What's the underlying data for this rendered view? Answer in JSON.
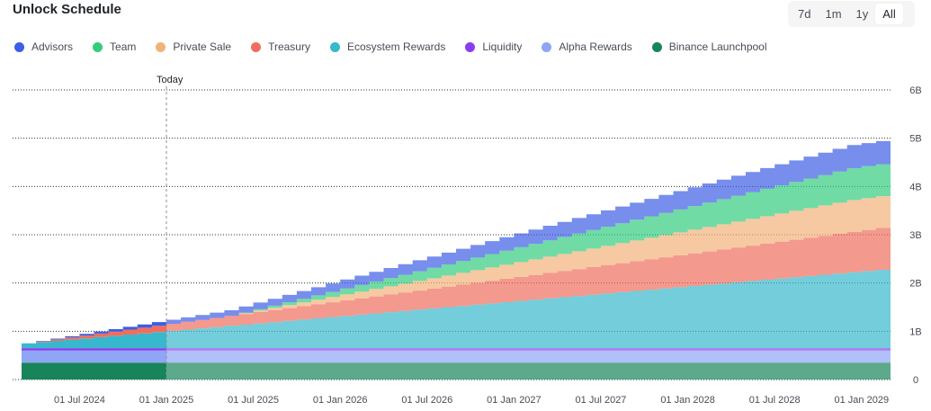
{
  "title": "Unlock Schedule",
  "ranges": {
    "d7": "7d",
    "m1": "1m",
    "y1": "1y",
    "all": "All"
  },
  "legend": [
    {
      "name": "Advisors",
      "color": "#3d5ee6"
    },
    {
      "name": "Team",
      "color": "#33cc7d"
    },
    {
      "name": "Private Sale",
      "color": "#f2b27b"
    },
    {
      "name": "Treasury",
      "color": "#f06e5c"
    },
    {
      "name": "Ecosystem Rewards",
      "color": "#37b8cc"
    },
    {
      "name": "Liquidity",
      "color": "#8a3df0"
    },
    {
      "name": "Alpha Rewards",
      "color": "#8fa5f5"
    },
    {
      "name": "Binance Launchpool",
      "color": "#17845a"
    }
  ],
  "today_label": "Today",
  "chart_data": {
    "type": "area",
    "stacked": true,
    "title": "Unlock Schedule",
    "x_range": [
      "2024-03",
      "2029-03"
    ],
    "ylim": [
      0,
      6
    ],
    "y_unit": "B",
    "y_ticks": [
      "0",
      "1B",
      "2B",
      "3B",
      "4B",
      "5B",
      "6B"
    ],
    "x_ticks": [
      "01 Jul 2024",
      "01 Jan 2025",
      "01 Jul 2025",
      "01 Jan 2026",
      "01 Jul 2026",
      "01 Jan 2027",
      "01 Jul 2027",
      "01 Jan 2028",
      "01 Jul 2028",
      "01 Jan 2029"
    ],
    "today_month": 10,
    "months": 61,
    "series": [
      {
        "name": "Binance Launchpool",
        "profile": "constant",
        "start": 0.35,
        "end": 0.35
      },
      {
        "name": "Alpha Rewards",
        "profile": "constant",
        "start": 0.25,
        "end": 0.25
      },
      {
        "name": "Liquidity",
        "profile": "constant",
        "start": 0.05,
        "end": 0.05
      },
      {
        "name": "Ecosystem Rewards",
        "profile": "linear",
        "start": 0.1,
        "end": 1.65
      },
      {
        "name": "Treasury",
        "profile": "linear",
        "start": 0.0,
        "end": 0.88
      },
      {
        "name": "Private Sale",
        "profile": "cliff",
        "start": 0.0,
        "end": 0.66,
        "vest_start": 14,
        "vest_end": 57
      },
      {
        "name": "Team",
        "profile": "cliff",
        "start": 0.0,
        "end": 0.66,
        "vest_start": 14,
        "vest_end": 57
      },
      {
        "name": "Advisors",
        "profile": "advisors",
        "start": 0.0,
        "end": 0.48,
        "vest_start": 0,
        "vest_end": 57
      }
    ]
  }
}
